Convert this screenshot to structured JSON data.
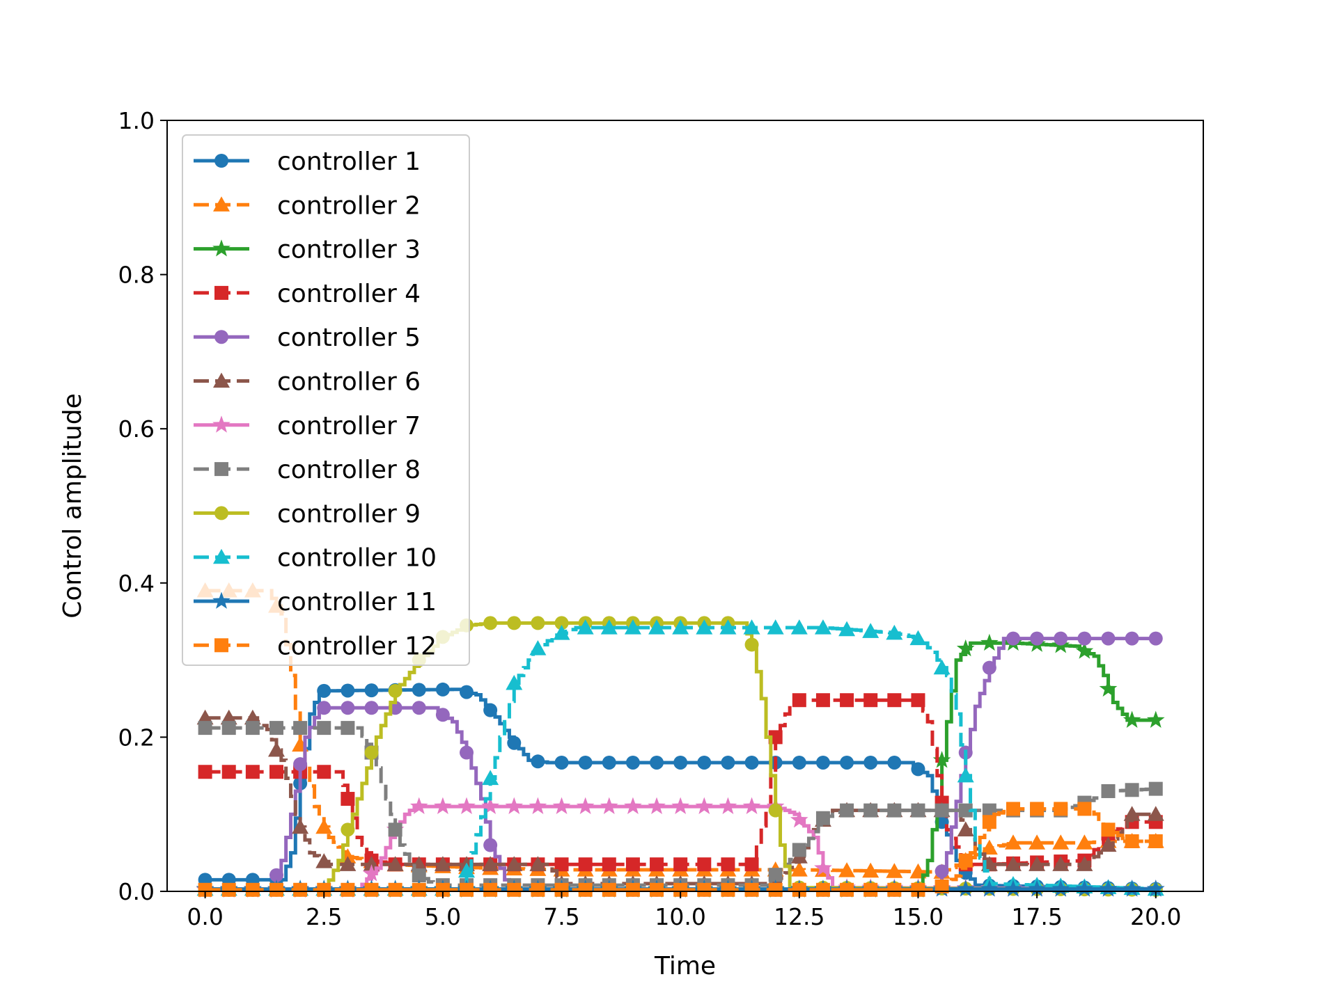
{
  "chart_data": {
    "type": "line",
    "title": "",
    "xlabel": "Time",
    "ylabel": "Control amplitude",
    "xlim": [
      -0.8,
      21.0
    ],
    "ylim": [
      0.0,
      1.0
    ],
    "xticks": [
      0.0,
      2.5,
      5.0,
      7.5,
      10.0,
      12.5,
      15.0,
      17.5,
      20.0
    ],
    "xtick_labels": [
      "0.0",
      "2.5",
      "5.0",
      "7.5",
      "10.0",
      "12.5",
      "15.0",
      "17.5",
      "20.0"
    ],
    "yticks": [
      0.0,
      0.2,
      0.4,
      0.6,
      0.8,
      1.0
    ],
    "ytick_labels": [
      "0.0",
      "0.2",
      "0.4",
      "0.6",
      "0.8",
      "1.0"
    ],
    "grid": false,
    "legend_position": "upper-left",
    "series": [
      {
        "name": "controller 1",
        "color": "#1f77b4",
        "linestyle": "solid",
        "marker": "circle",
        "points": [
          [
            0,
            0.015
          ],
          [
            1.2,
            0.015
          ],
          [
            1.6,
            0.015
          ],
          [
            1.8,
            0.05
          ],
          [
            2.0,
            0.14
          ],
          [
            2.2,
            0.23
          ],
          [
            2.4,
            0.26
          ],
          [
            5.3,
            0.262
          ],
          [
            5.7,
            0.255
          ],
          [
            6.0,
            0.235
          ],
          [
            6.4,
            0.2
          ],
          [
            6.8,
            0.17
          ],
          [
            7.2,
            0.167
          ],
          [
            14.8,
            0.167
          ],
          [
            15.2,
            0.15
          ],
          [
            15.5,
            0.09
          ],
          [
            15.8,
            0.04
          ],
          [
            16.2,
            0.008
          ],
          [
            20,
            0.003
          ]
        ]
      },
      {
        "name": "controller 2",
        "color": "#ff7f0e",
        "linestyle": "dashed",
        "marker": "triangle",
        "points": [
          [
            0,
            0.39
          ],
          [
            1.3,
            0.39
          ],
          [
            1.6,
            0.36
          ],
          [
            1.8,
            0.28
          ],
          [
            2.0,
            0.19
          ],
          [
            2.3,
            0.11
          ],
          [
            2.6,
            0.07
          ],
          [
            3.0,
            0.045
          ],
          [
            3.8,
            0.035
          ],
          [
            6.0,
            0.03
          ],
          [
            7.5,
            0.028
          ],
          [
            12.5,
            0.028
          ],
          [
            15.5,
            0.025
          ],
          [
            16.0,
            0.04
          ],
          [
            16.4,
            0.055
          ],
          [
            17.0,
            0.063
          ],
          [
            18.5,
            0.063
          ],
          [
            19.0,
            0.065
          ],
          [
            20,
            0.065
          ]
        ]
      },
      {
        "name": "controller 3",
        "color": "#2ca02c",
        "linestyle": "solid",
        "marker": "star",
        "points": [
          [
            0,
            0.002
          ],
          [
            15.0,
            0.002
          ],
          [
            15.2,
            0.04
          ],
          [
            15.4,
            0.12
          ],
          [
            15.6,
            0.22
          ],
          [
            15.8,
            0.3
          ],
          [
            16.1,
            0.322
          ],
          [
            17.0,
            0.322
          ],
          [
            18.3,
            0.318
          ],
          [
            18.7,
            0.305
          ],
          [
            18.9,
            0.28
          ],
          [
            19.1,
            0.245
          ],
          [
            19.4,
            0.222
          ],
          [
            20,
            0.222
          ]
        ]
      },
      {
        "name": "controller 4",
        "color": "#d62728",
        "linestyle": "dashed",
        "marker": "square",
        "points": [
          [
            0,
            0.155
          ],
          [
            2.8,
            0.155
          ],
          [
            3.0,
            0.12
          ],
          [
            3.2,
            0.07
          ],
          [
            3.5,
            0.04
          ],
          [
            4.0,
            0.035
          ],
          [
            11.5,
            0.035
          ],
          [
            11.8,
            0.11
          ],
          [
            12.0,
            0.2
          ],
          [
            12.3,
            0.245
          ],
          [
            12.5,
            0.248
          ],
          [
            15.0,
            0.248
          ],
          [
            15.2,
            0.22
          ],
          [
            15.4,
            0.15
          ],
          [
            15.6,
            0.08
          ],
          [
            16.0,
            0.035
          ],
          [
            16.5,
            0.035
          ],
          [
            18.5,
            0.04
          ],
          [
            19.0,
            0.075
          ],
          [
            19.5,
            0.09
          ],
          [
            20,
            0.09
          ]
        ]
      },
      {
        "name": "controller 5",
        "color": "#9467bd",
        "linestyle": "solid",
        "marker": "circle",
        "points": [
          [
            0,
            0.002
          ],
          [
            1.4,
            0.002
          ],
          [
            1.6,
            0.04
          ],
          [
            1.9,
            0.13
          ],
          [
            2.1,
            0.2
          ],
          [
            2.4,
            0.238
          ],
          [
            4.8,
            0.238
          ],
          [
            5.2,
            0.22
          ],
          [
            5.5,
            0.18
          ],
          [
            5.8,
            0.12
          ],
          [
            6.0,
            0.06
          ],
          [
            6.3,
            0.015
          ],
          [
            6.6,
            0.002
          ],
          [
            15.4,
            0.002
          ],
          [
            15.6,
            0.05
          ],
          [
            15.9,
            0.15
          ],
          [
            16.2,
            0.24
          ],
          [
            16.5,
            0.29
          ],
          [
            16.8,
            0.328
          ],
          [
            20,
            0.328
          ]
        ]
      },
      {
        "name": "controller 6",
        "color": "#8c564b",
        "linestyle": "dashed",
        "marker": "triangle",
        "points": [
          [
            0,
            0.225
          ],
          [
            1.0,
            0.225
          ],
          [
            1.3,
            0.21
          ],
          [
            1.6,
            0.17
          ],
          [
            1.9,
            0.1
          ],
          [
            2.2,
            0.05
          ],
          [
            2.6,
            0.035
          ],
          [
            7.2,
            0.035
          ],
          [
            7.5,
            0.01
          ],
          [
            12.0,
            0.01
          ],
          [
            12.5,
            0.045
          ],
          [
            12.8,
            0.08
          ],
          [
            13.2,
            0.105
          ],
          [
            15.8,
            0.105
          ],
          [
            16.2,
            0.055
          ],
          [
            16.5,
            0.035
          ],
          [
            18.5,
            0.035
          ],
          [
            19.0,
            0.06
          ],
          [
            19.5,
            0.1
          ],
          [
            20,
            0.1
          ]
        ]
      },
      {
        "name": "controller 7",
        "color": "#e377c2",
        "linestyle": "solid",
        "marker": "star",
        "points": [
          [
            0,
            0.002
          ],
          [
            3.2,
            0.002
          ],
          [
            3.6,
            0.03
          ],
          [
            3.9,
            0.07
          ],
          [
            4.2,
            0.1
          ],
          [
            4.4,
            0.11
          ],
          [
            12.0,
            0.11
          ],
          [
            12.4,
            0.1
          ],
          [
            12.8,
            0.07
          ],
          [
            13.0,
            0.03
          ],
          [
            13.2,
            0.005
          ],
          [
            20,
            0.003
          ]
        ]
      },
      {
        "name": "controller 8",
        "color": "#7f7f7f",
        "linestyle": "dashed",
        "marker": "square",
        "points": [
          [
            0,
            0.212
          ],
          [
            3.2,
            0.212
          ],
          [
            3.5,
            0.18
          ],
          [
            3.8,
            0.12
          ],
          [
            4.1,
            0.06
          ],
          [
            4.4,
            0.025
          ],
          [
            4.8,
            0.008
          ],
          [
            11.8,
            0.008
          ],
          [
            12.2,
            0.035
          ],
          [
            12.6,
            0.06
          ],
          [
            13.0,
            0.095
          ],
          [
            13.4,
            0.105
          ],
          [
            18.0,
            0.105
          ],
          [
            18.5,
            0.115
          ],
          [
            19.0,
            0.13
          ],
          [
            20,
            0.133
          ]
        ]
      },
      {
        "name": "controller 9",
        "color": "#bcbd22",
        "linestyle": "solid",
        "marker": "circle",
        "points": [
          [
            0,
            0.002
          ],
          [
            2.5,
            0.002
          ],
          [
            2.8,
            0.04
          ],
          [
            3.2,
            0.12
          ],
          [
            3.6,
            0.2
          ],
          [
            4.0,
            0.26
          ],
          [
            4.5,
            0.3
          ],
          [
            5.0,
            0.33
          ],
          [
            5.5,
            0.345
          ],
          [
            6.0,
            0.348
          ],
          [
            11.3,
            0.348
          ],
          [
            11.5,
            0.32
          ],
          [
            11.7,
            0.25
          ],
          [
            11.9,
            0.15
          ],
          [
            12.1,
            0.06
          ],
          [
            12.3,
            0.005
          ],
          [
            20,
            0.002
          ]
        ]
      },
      {
        "name": "controller 10",
        "color": "#17becf",
        "linestyle": "dashed",
        "marker": "triangle",
        "points": [
          [
            0,
            0.003
          ],
          [
            5.4,
            0.003
          ],
          [
            5.6,
            0.05
          ],
          [
            5.9,
            0.12
          ],
          [
            6.2,
            0.2
          ],
          [
            6.5,
            0.27
          ],
          [
            6.9,
            0.31
          ],
          [
            7.3,
            0.33
          ],
          [
            7.8,
            0.342
          ],
          [
            13.0,
            0.342
          ],
          [
            14.5,
            0.335
          ],
          [
            15.0,
            0.328
          ],
          [
            15.3,
            0.31
          ],
          [
            15.6,
            0.28
          ],
          [
            15.8,
            0.23
          ],
          [
            16.0,
            0.15
          ],
          [
            16.2,
            0.06
          ],
          [
            16.5,
            0.01
          ],
          [
            20,
            0.003
          ]
        ]
      },
      {
        "name": "controller 11",
        "color": "#1f77b4",
        "linestyle": "solid",
        "marker": "star",
        "points": [
          [
            0,
            0.003
          ],
          [
            20,
            0.003
          ]
        ]
      },
      {
        "name": "controller 12",
        "color": "#ff7f0e",
        "linestyle": "dashed",
        "marker": "square",
        "points": [
          [
            0,
            0.002
          ],
          [
            15.4,
            0.002
          ],
          [
            15.8,
            0.02
          ],
          [
            16.2,
            0.06
          ],
          [
            16.6,
            0.1
          ],
          [
            17.0,
            0.107
          ],
          [
            18.6,
            0.107
          ],
          [
            19.0,
            0.08
          ],
          [
            19.4,
            0.065
          ],
          [
            20,
            0.065
          ]
        ]
      }
    ]
  }
}
